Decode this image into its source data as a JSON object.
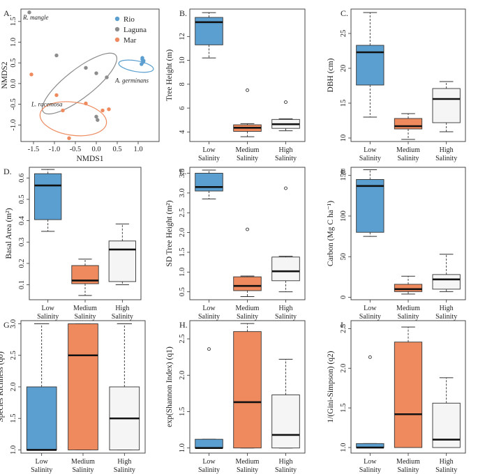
{
  "colors": {
    "rio": "#5A9FD0",
    "laguna": "#8C8C8C",
    "mar": "#EE8A5E",
    "low": "#5A9FD0",
    "medium": "#EE8A5E",
    "high": "#F5F5F5"
  },
  "chart_data": [
    {
      "panel": "A.",
      "type": "scatter",
      "xlabel": "NMDS1",
      "ylabel": "NMDS2",
      "xlim": [
        -1.8,
        1.5
      ],
      "ylim": [
        -1.4,
        1.8
      ],
      "xticks": [
        -1.5,
        -1.0,
        -0.5,
        0.0,
        0.5,
        1.0
      ],
      "xtick_labels": [
        "-1.5",
        "-1.0",
        "-0.5",
        "0.0",
        "0.5",
        "1.0"
      ],
      "yticks": [
        -1.0,
        -0.5,
        0.0,
        0.5,
        1.0,
        1.5
      ],
      "ytick_labels": [
        "-1.0",
        "-0.5",
        "0.0",
        "0.5",
        "1.0",
        "1.5"
      ],
      "legend": {
        "position": "top-right",
        "entries": [
          "Rio",
          "Laguna",
          "Mar"
        ]
      },
      "series": [
        {
          "name": "Rio",
          "color_key": "rio",
          "points": [
            [
              1.1,
              0.62
            ],
            [
              1.13,
              0.55
            ],
            [
              1.08,
              0.47
            ],
            [
              1.12,
              0.52
            ],
            [
              1.1,
              0.58
            ]
          ]
        },
        {
          "name": "Laguna",
          "color_key": "laguna",
          "points": [
            [
              -1.6,
              1.72
            ],
            [
              -0.95,
              0.68
            ],
            [
              -0.25,
              0.38
            ],
            [
              0.0,
              0.25
            ],
            [
              0.25,
              0.15
            ],
            [
              0.0,
              -0.8
            ],
            [
              0.03,
              -0.88
            ]
          ]
        },
        {
          "name": "Mar",
          "color_key": "mar",
          "points": [
            [
              -1.55,
              0.22
            ],
            [
              -0.95,
              -0.28
            ],
            [
              -0.8,
              -0.65
            ],
            [
              -0.65,
              -1.32
            ],
            [
              -0.25,
              -0.48
            ],
            [
              0.15,
              -0.65
            ],
            [
              0.3,
              -0.62
            ]
          ]
        }
      ],
      "ellipses": [
        {
          "series": "Rio",
          "cx": 0.95,
          "cy": 0.42,
          "rx": 0.42,
          "ry": 0.13,
          "angle": 10
        },
        {
          "series": "Laguna",
          "cx": -0.4,
          "cy": 0.0,
          "rx": 1.1,
          "ry": 0.34,
          "angle": -38
        },
        {
          "series": "Mar",
          "cx": -0.55,
          "cy": -0.85,
          "rx": 0.8,
          "ry": 0.4,
          "angle": 8
        }
      ],
      "annotations": [
        {
          "text": "R. mangle",
          "x": -1.75,
          "y": 1.55
        },
        {
          "text": "A. germinans",
          "x": 0.45,
          "y": 0.02
        },
        {
          "text": "L. racemosa",
          "x": -1.55,
          "y": -0.55
        }
      ]
    },
    {
      "panel": "B.",
      "type": "box",
      "ylabel": "Tree Height (m)",
      "ylim": [
        3.2,
        14.3
      ],
      "yticks": [
        4,
        6,
        8,
        10,
        12
      ],
      "ytick_labels": [
        "4",
        "6",
        "8",
        "10",
        "12"
      ],
      "categories": [
        "Low\nSalinity",
        "Medium\nSalinity",
        "High\nSalinity"
      ],
      "fill_keys": [
        "low",
        "medium",
        "high"
      ],
      "boxes": [
        {
          "whisker_low": 10.2,
          "q1": 11.3,
          "median": 13.2,
          "q3": 13.6,
          "whisker_high": 14.0,
          "outliers": []
        },
        {
          "whisker_low": 3.6,
          "q1": 4.05,
          "median": 4.35,
          "q3": 4.6,
          "whisker_high": 4.7,
          "outliers": [
            7.5
          ]
        },
        {
          "whisker_low": 4.1,
          "q1": 4.3,
          "median": 4.65,
          "q3": 5.05,
          "whisker_high": 5.1,
          "outliers": [
            6.5
          ]
        }
      ]
    },
    {
      "panel": "C.",
      "type": "box",
      "ylabel": "DBH (cm)",
      "ylim": [
        9.5,
        28.5
      ],
      "yticks": [
        10,
        15,
        20,
        25
      ],
      "ytick_labels": [
        "10",
        "15",
        "20",
        "25"
      ],
      "categories": [
        "Low\nSalinity",
        "Medium\nSalinity",
        "High\nSalinity"
      ],
      "fill_keys": [
        "low",
        "medium",
        "high"
      ],
      "boxes": [
        {
          "whisker_low": 13.0,
          "q1": 17.6,
          "median": 22.3,
          "q3": 23.3,
          "whisker_high": 28.0,
          "outliers": []
        },
        {
          "whisker_low": 9.8,
          "q1": 11.3,
          "median": 11.7,
          "q3": 12.8,
          "whisker_high": 13.5,
          "outliers": []
        },
        {
          "whisker_low": 10.9,
          "q1": 12.2,
          "median": 15.6,
          "q3": 17.1,
          "whisker_high": 18.1,
          "outliers": []
        }
      ]
    },
    {
      "panel": "D.",
      "type": "box",
      "ylabel": "Basal Area (m²)",
      "ylim": [
        0.03,
        0.65
      ],
      "yticks": [
        0.1,
        0.2,
        0.3,
        0.4,
        0.5,
        0.6
      ],
      "ytick_labels": [
        "0.1",
        "0.2",
        "0.3",
        "0.4",
        "0.5",
        "0.6"
      ],
      "categories": [
        "Low\nSalinity",
        "Medium\nSalinity",
        "High\nSalinity"
      ],
      "fill_keys": [
        "low",
        "medium",
        "high"
      ],
      "boxes": [
        {
          "whisker_low": 0.35,
          "q1": 0.405,
          "median": 0.565,
          "q3": 0.62,
          "whisker_high": 0.64,
          "outliers": []
        },
        {
          "whisker_low": 0.05,
          "q1": 0.105,
          "median": 0.12,
          "q3": 0.19,
          "whisker_high": 0.22,
          "outliers": []
        },
        {
          "whisker_low": 0.1,
          "q1": 0.115,
          "median": 0.265,
          "q3": 0.305,
          "whisker_high": 0.385,
          "outliers": []
        }
      ]
    },
    {
      "panel": "E.",
      "type": "box",
      "ylabel": "SD Tree Height (m²)",
      "ylim": [
        0.3,
        3.65
      ],
      "yticks": [
        0.5,
        1.0,
        1.5,
        2.0,
        2.5,
        3.0,
        3.5
      ],
      "ytick_labels": [
        "0.5",
        "1.0",
        "1.5",
        "2.0",
        "2.5",
        "3.0",
        "3.5"
      ],
      "categories": [
        "Low\nSalinity",
        "Medium\nSalinity",
        "High\nSalinity"
      ],
      "fill_keys": [
        "low",
        "medium",
        "high"
      ],
      "boxes": [
        {
          "whisker_low": 2.85,
          "q1": 3.05,
          "median": 3.15,
          "q3": 3.5,
          "whisker_high": 3.58,
          "outliers": []
        },
        {
          "whisker_low": 0.38,
          "q1": 0.53,
          "median": 0.65,
          "q3": 0.88,
          "whisker_high": 0.9,
          "outliers": [
            2.08
          ]
        },
        {
          "whisker_low": 0.5,
          "q1": 0.78,
          "median": 1.02,
          "q3": 1.38,
          "whisker_high": 1.4,
          "outliers": [
            3.12
          ]
        }
      ]
    },
    {
      "panel": "F.",
      "type": "box",
      "ylabel": "Carbon (Mg C ha⁻¹)",
      "ylim": [
        -3,
        160
      ],
      "yticks": [
        0,
        50,
        100,
        150
      ],
      "ytick_labels": [
        "0",
        "50",
        "100",
        "150"
      ],
      "categories": [
        "Low\nSalinity",
        "Medium\nSalinity",
        "High\nSalinity"
      ],
      "fill_keys": [
        "low",
        "medium",
        "high"
      ],
      "boxes": [
        {
          "whisker_low": 75,
          "q1": 80,
          "median": 137,
          "q3": 145,
          "whisker_high": 157,
          "outliers": []
        },
        {
          "whisker_low": 4,
          "q1": 7,
          "median": 10,
          "q3": 16,
          "whisker_high": 26,
          "outliers": []
        },
        {
          "whisker_low": 7,
          "q1": 10,
          "median": 22,
          "q3": 28,
          "whisker_high": 53,
          "outliers": []
        }
      ]
    },
    {
      "panel": "G.",
      "type": "box",
      "ylabel": "Species Richness (q0)",
      "ylim": [
        0.95,
        3.05
      ],
      "yticks": [
        1.0,
        1.5,
        2.0,
        2.5,
        3.0
      ],
      "ytick_labels": [
        "1.0",
        "1.5",
        "2.0",
        "2.5",
        "3.0"
      ],
      "categories": [
        "Low\nSalinity",
        "Medium\nSalinity",
        "High\nSalinity"
      ],
      "fill_keys": [
        "low",
        "medium",
        "high"
      ],
      "boxes": [
        {
          "whisker_low": 1.0,
          "q1": 1.0,
          "median": 1.0,
          "q3": 2.0,
          "whisker_high": 3.0,
          "outliers": []
        },
        {
          "whisker_low": 1.0,
          "q1": 1.0,
          "median": 2.5,
          "q3": 3.0,
          "whisker_high": 3.0,
          "outliers": []
        },
        {
          "whisker_low": 1.0,
          "q1": 1.0,
          "median": 1.5,
          "q3": 2.0,
          "whisker_high": 3.0,
          "outliers": []
        }
      ]
    },
    {
      "panel": "H.",
      "type": "box",
      "ylabel": "exp(Shannon Index) (q1)",
      "ylim": [
        0.93,
        2.75
      ],
      "yticks": [
        1.0,
        1.5,
        2.0,
        2.5
      ],
      "ytick_labels": [
        "1.0",
        "1.5",
        "2.0",
        "2.5"
      ],
      "categories": [
        "Low\nSalinity",
        "Medium\nSalinity",
        "High\nSalinity"
      ],
      "fill_keys": [
        "low",
        "medium",
        "high"
      ],
      "boxes": [
        {
          "whisker_low": 1.0,
          "q1": 1.0,
          "median": 1.0,
          "q3": 1.12,
          "whisker_high": 1.12,
          "outliers": [
            2.36
          ]
        },
        {
          "whisker_low": 1.0,
          "q1": 1.0,
          "median": 1.63,
          "q3": 2.6,
          "whisker_high": 2.71,
          "outliers": []
        },
        {
          "whisker_low": 1.0,
          "q1": 1.0,
          "median": 1.18,
          "q3": 1.73,
          "whisker_high": 2.22,
          "outliers": []
        }
      ]
    },
    {
      "panel": "I.",
      "type": "box",
      "ylabel": "1/(Gini-Simpson) (q2)",
      "ylim": [
        0.93,
        2.6
      ],
      "yticks": [
        1.0,
        1.5,
        2.0,
        2.5
      ],
      "ytick_labels": [
        "1.0",
        "1.5",
        "2.0",
        "2.5"
      ],
      "categories": [
        "Low\nSalinity",
        "Medium\nSalinity",
        "High\nSalinity"
      ],
      "fill_keys": [
        "low",
        "medium",
        "high"
      ],
      "boxes": [
        {
          "whisker_low": 1.0,
          "q1": 1.0,
          "median": 1.0,
          "q3": 1.05,
          "whisker_high": 1.05,
          "outliers": [
            2.14
          ]
        },
        {
          "whisker_low": 1.0,
          "q1": 1.0,
          "median": 1.42,
          "q3": 2.33,
          "whisker_high": 2.52,
          "outliers": []
        },
        {
          "whisker_low": 1.0,
          "q1": 1.0,
          "median": 1.1,
          "q3": 1.56,
          "whisker_high": 1.88,
          "outliers": []
        }
      ]
    }
  ]
}
